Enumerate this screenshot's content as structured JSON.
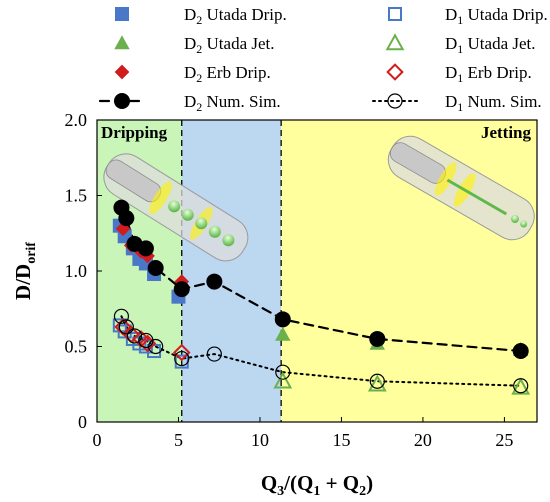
{
  "chart_data": {
    "type": "scatter",
    "xlabel": "Q3/(Q1 + Q2)",
    "ylabel": "D/Dorif",
    "xlim": [
      0,
      27
    ],
    "ylim": [
      0,
      2.0
    ],
    "x_ticks": [
      0,
      5,
      10,
      15,
      20,
      25
    ],
    "y_ticks": [
      0,
      0.5,
      1.0,
      1.5,
      2.0
    ],
    "x_tick_labels": [
      "0",
      "5",
      "10",
      "15",
      "20",
      "25"
    ],
    "y_tick_labels": [
      "0",
      "0.5",
      "1.0",
      "1.5",
      "2.0"
    ],
    "grid": false,
    "legend_position": "top",
    "regions": [
      {
        "label": "Dripping",
        "x_start": 0,
        "x_end": 5.2,
        "color": "#c9f5b8"
      },
      {
        "label": "",
        "x_start": 5.2,
        "x_end": 11.3,
        "color": "#bcd7f0"
      },
      {
        "label": "Jetting",
        "x_start": 11.3,
        "x_end": 27,
        "color": "#ffff9e"
      }
    ],
    "boundaries": [
      5.2,
      11.3
    ],
    "series": [
      {
        "name": "D2 Utada Drip.",
        "legend_main": "D",
        "legend_sub": "2",
        "legend_rest": " Utada Drip.",
        "marker": "square",
        "filled": true,
        "color": "#4a78c8",
        "x": [
          1.4,
          1.7,
          2.2,
          2.6,
          3.0,
          3.5,
          5.0
        ],
        "y": [
          1.3,
          1.23,
          1.15,
          1.08,
          1.05,
          0.98,
          0.83
        ]
      },
      {
        "name": "D2 Utada Jet.",
        "legend_main": "D",
        "legend_sub": "2",
        "legend_rest": " Utada Jet.",
        "marker": "triangle",
        "filled": true,
        "color": "#6ab04c",
        "x": [
          11.4,
          17.2,
          26.0
        ],
        "y": [
          0.58,
          0.52,
          0.48
        ]
      },
      {
        "name": "D2 Erb Drip.",
        "legend_main": "D",
        "legend_sub": "2",
        "legend_rest": " Erb Drip.",
        "marker": "diamond",
        "filled": true,
        "color": "#d01c1c",
        "x": [
          1.6,
          2.1,
          2.7,
          3.1,
          5.2
        ],
        "y": [
          1.28,
          1.17,
          1.13,
          1.1,
          0.93
        ]
      },
      {
        "name": "D2 Num. Sim.",
        "legend_main": "D",
        "legend_sub": "2",
        "legend_rest": " Num. Sim.",
        "marker": "circle",
        "filled": true,
        "color": "#000000",
        "line": "dashed",
        "x": [
          1.5,
          1.8,
          2.3,
          3.0,
          3.6,
          5.2,
          7.2,
          11.4,
          17.2,
          26.0
        ],
        "y": [
          1.42,
          1.35,
          1.18,
          1.15,
          1.02,
          0.88,
          0.93,
          0.68,
          0.55,
          0.47
        ]
      },
      {
        "name": "D1 Utada Drip.",
        "legend_main": "D",
        "legend_sub": "1",
        "legend_rest": " Utada Drip.",
        "marker": "square",
        "filled": false,
        "color": "#4a78c8",
        "x": [
          1.4,
          1.7,
          2.2,
          2.6,
          3.0,
          3.5,
          5.2
        ],
        "y": [
          0.64,
          0.6,
          0.55,
          0.52,
          0.5,
          0.47,
          0.4
        ]
      },
      {
        "name": "D1 Utada Jet.",
        "legend_main": "D",
        "legend_sub": "1",
        "legend_rest": " Utada Jet.",
        "marker": "triangle",
        "filled": false,
        "color": "#6ab04c",
        "x": [
          11.4,
          17.2,
          26.0
        ],
        "y": [
          0.27,
          0.25,
          0.23
        ]
      },
      {
        "name": "D1 Erb Drip.",
        "legend_main": "D",
        "legend_sub": "1",
        "legend_rest": " Erb Drip.",
        "marker": "diamond",
        "filled": false,
        "color": "#d01c1c",
        "x": [
          1.6,
          2.1,
          2.7,
          3.1,
          5.2
        ],
        "y": [
          0.63,
          0.58,
          0.55,
          0.52,
          0.46
        ]
      },
      {
        "name": "D1 Num. Sim.",
        "legend_main": "D",
        "legend_sub": "1",
        "legend_rest": " Num. Sim.",
        "marker": "circle",
        "filled": false,
        "color": "#000000",
        "line": "dotted",
        "x": [
          1.5,
          1.8,
          2.3,
          3.0,
          3.6,
          5.2,
          7.2,
          11.4,
          17.2,
          26.0
        ],
        "y": [
          0.7,
          0.63,
          0.57,
          0.54,
          0.5,
          0.42,
          0.45,
          0.33,
          0.27,
          0.24
        ]
      }
    ]
  }
}
